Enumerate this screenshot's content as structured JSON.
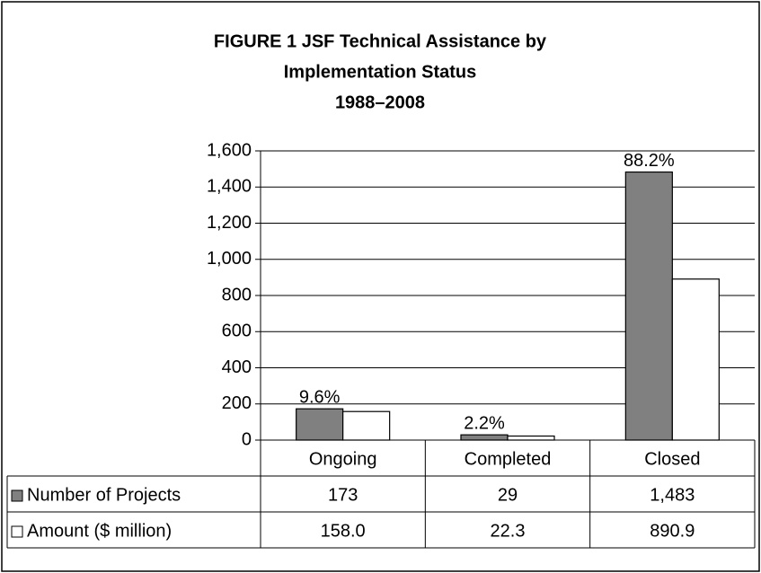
{
  "chart_data": {
    "type": "bar",
    "title": [
      "FIGURE 1 JSF Technical Assistance by",
      "Implementation Status",
      "1988–2008"
    ],
    "categories": [
      "Ongoing",
      "Completed",
      "Closed"
    ],
    "series": [
      {
        "name": "Number of Projects",
        "color": "#808080",
        "values": [
          173,
          29,
          1483
        ],
        "value_labels": [
          "173",
          "29",
          "1,483"
        ]
      },
      {
        "name": "Amount ($ million)",
        "color": "#ffffff",
        "values": [
          158.0,
          22.3,
          890.9
        ],
        "value_labels": [
          "158.0",
          "22.3",
          "890.9"
        ]
      }
    ],
    "bar_annotations": [
      "9.6%",
      "2.2%",
      "88.2%"
    ],
    "ylim": [
      0,
      1600
    ],
    "yticks": [
      0,
      200,
      400,
      600,
      800,
      {
        "value": 1000,
        "label": "1,000"
      },
      {
        "value": 1200,
        "label": "1,200"
      },
      {
        "value": 1400,
        "label": "1,400"
      },
      {
        "value": 1600,
        "label": "1,600"
      }
    ],
    "grid": true
  }
}
